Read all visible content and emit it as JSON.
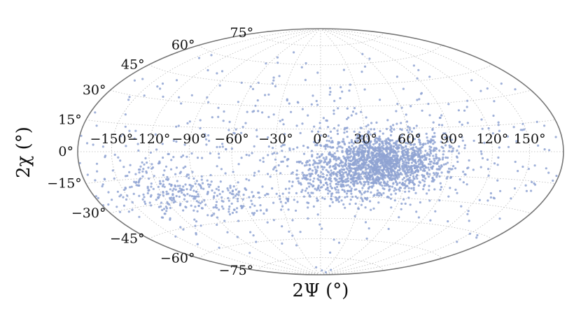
{
  "chart_data": {
    "type": "scatter",
    "projection": "hammer-aitoff",
    "title": "",
    "xlabel": "2Ψ (°)",
    "ylabel": "2χ (°)",
    "xlim": [
      -180,
      180
    ],
    "ylim": [
      -90,
      90
    ],
    "xticks": [
      -150,
      -120,
      -90,
      -60,
      -30,
      0,
      30,
      60,
      90,
      120,
      150
    ],
    "yticks": [
      -75,
      -60,
      -45,
      -30,
      -15,
      0,
      15,
      30,
      45,
      60,
      75
    ],
    "xtick_labels": [
      "−150°",
      "−120°",
      "−90°",
      "−60°",
      "−30°",
      "0°",
      "30°",
      "60°",
      "90°",
      "120°",
      "150°"
    ],
    "ytick_labels": [
      "−75°",
      "−60°",
      "−45°",
      "−30°",
      "−15°",
      "0°",
      "15°",
      "30°",
      "45°",
      "60°",
      "75°"
    ],
    "grid": true,
    "point_color": "#8fa3d2",
    "clusters": [
      {
        "center": [
          42,
          -7
        ],
        "spread": [
          22,
          9
        ],
        "count": 1500
      },
      {
        "center": [
          -125,
          -20
        ],
        "spread": [
          22,
          8
        ],
        "count": 160
      },
      {
        "center": [
          -80,
          -30
        ],
        "spread": [
          28,
          9
        ],
        "count": 160
      },
      {
        "center": [
          10,
          -18
        ],
        "spread": [
          20,
          9
        ],
        "count": 220
      },
      {
        "center": [
          0,
          0
        ],
        "spread": [
          95,
          28
        ],
        "count": 650
      }
    ]
  }
}
